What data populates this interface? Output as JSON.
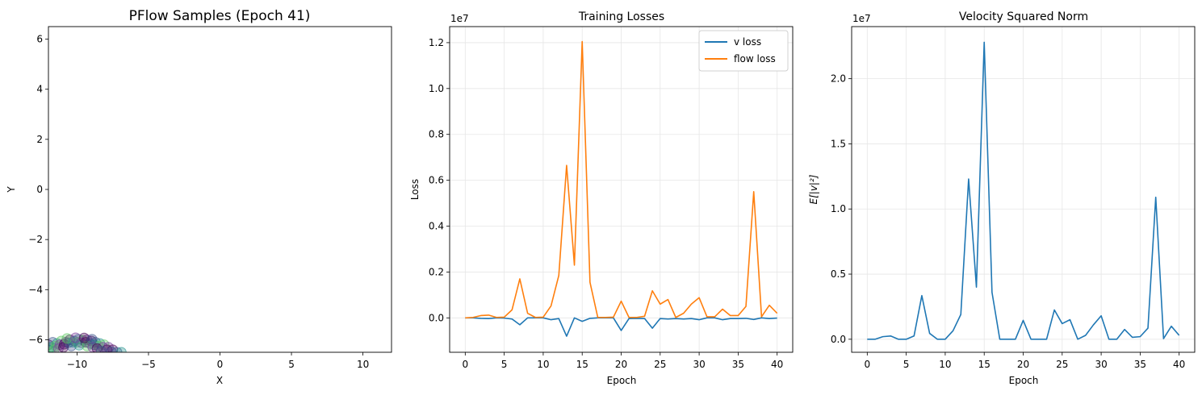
{
  "chart_data": [
    {
      "type": "scatter",
      "title": "PFlow Samples (Epoch 41)",
      "xlabel": "X",
      "ylabel": "Y",
      "xlim": [
        -12,
        12
      ],
      "ylim": [
        -6.5,
        6.5
      ],
      "xticks": [
        -10,
        -5,
        0,
        5,
        10
      ],
      "xtick_labels": [
        "−10",
        "−5",
        "0",
        "5",
        "10"
      ],
      "yticks": [
        -6,
        -4,
        -2,
        0,
        2,
        4,
        6
      ],
      "ytick_labels": [
        "−6",
        "−4",
        "−2",
        "0",
        "2",
        "4",
        "6"
      ],
      "grid": false,
      "colors": [
        "#440154",
        "#3b528b",
        "#21918c",
        "#5ec962",
        "#7b3f9e"
      ],
      "points": [
        [
          -12.0,
          -6.2
        ],
        [
          -11.7,
          -6.1
        ],
        [
          -11.4,
          -6.15
        ],
        [
          -11.1,
          -6.05
        ],
        [
          -10.8,
          -6.1
        ],
        [
          -10.5,
          -6.0
        ],
        [
          -10.2,
          -6.05
        ],
        [
          -9.9,
          -5.98
        ],
        [
          -9.6,
          -6.02
        ],
        [
          -9.3,
          -6.0
        ],
        [
          -9.0,
          -6.05
        ],
        [
          -8.7,
          -6.1
        ],
        [
          -8.4,
          -6.15
        ],
        [
          -8.1,
          -6.2
        ],
        [
          -7.8,
          -6.3
        ],
        [
          -7.5,
          -6.4
        ],
        [
          -7.2,
          -6.5
        ],
        [
          -11.8,
          -6.3
        ],
        [
          -11.5,
          -6.25
        ],
        [
          -11.2,
          -6.2
        ],
        [
          -10.9,
          -6.18
        ],
        [
          -10.6,
          -6.12
        ],
        [
          -10.3,
          -6.1
        ],
        [
          -10.0,
          -6.1
        ],
        [
          -9.7,
          -6.12
        ],
        [
          -9.4,
          -6.1
        ],
        [
          -9.1,
          -6.15
        ],
        [
          -8.8,
          -6.2
        ],
        [
          -8.5,
          -6.25
        ],
        [
          -8.2,
          -6.3
        ],
        [
          -7.9,
          -6.4
        ],
        [
          -7.6,
          -6.48
        ],
        [
          -12.0,
          -6.4
        ],
        [
          -11.6,
          -6.4
        ],
        [
          -11.3,
          -6.35
        ],
        [
          -10.95,
          -6.3
        ],
        [
          -10.4,
          -6.25
        ],
        [
          -9.85,
          -6.22
        ],
        [
          -9.3,
          -6.25
        ],
        [
          -8.9,
          -6.3
        ],
        [
          -8.6,
          -6.35
        ],
        [
          -8.3,
          -6.45
        ],
        [
          -6.9,
          -6.5
        ],
        [
          -10.7,
          -5.95
        ],
        [
          -10.1,
          -5.92
        ],
        [
          -9.5,
          -5.93
        ],
        [
          -8.95,
          -5.98
        ]
      ]
    },
    {
      "type": "line",
      "title": "Training Losses",
      "xlabel": "Epoch",
      "ylabel": "Loss",
      "offset_text": "1e7",
      "xlim": [
        -2,
        42
      ],
      "ylim": [
        -0.15,
        1.27
      ],
      "xticks": [
        0,
        5,
        10,
        15,
        20,
        25,
        30,
        35,
        40
      ],
      "yticks": [
        0.0,
        0.2,
        0.4,
        0.6,
        0.8,
        1.0,
        1.2
      ],
      "ytick_labels": [
        "0.0",
        "0.2",
        "0.4",
        "0.6",
        "0.8",
        "1.0",
        "1.2"
      ],
      "grid": true,
      "legend": "top-right",
      "x": [
        0,
        1,
        2,
        3,
        4,
        5,
        6,
        7,
        8,
        9,
        10,
        11,
        12,
        13,
        14,
        15,
        16,
        17,
        18,
        19,
        20,
        21,
        22,
        23,
        24,
        25,
        26,
        27,
        28,
        29,
        30,
        31,
        32,
        33,
        34,
        35,
        36,
        37,
        38,
        39,
        40
      ],
      "series": [
        {
          "name": "v loss",
          "color": "#1f77b4",
          "values": [
            0,
            0,
            -0.002,
            -0.003,
            0,
            -0.001,
            -0.005,
            -0.03,
            0,
            0,
            0,
            -0.008,
            -0.003,
            -0.08,
            0,
            -0.015,
            -0.002,
            0,
            0,
            0,
            -0.055,
            -0.003,
            -0.002,
            -0.003,
            -0.045,
            -0.003,
            -0.005,
            -0.003,
            -0.005,
            -0.003,
            -0.008,
            0,
            0,
            -0.008,
            -0.003,
            -0.003,
            -0.002,
            -0.007,
            0,
            -0.003,
            -0.001
          ]
        },
        {
          "name": "flow loss",
          "color": "#ff7f0e",
          "values": [
            0,
            0.002,
            0.01,
            0.012,
            0.002,
            0.003,
            0.035,
            0.17,
            0.02,
            0.002,
            0.003,
            0.052,
            0.185,
            0.665,
            0.23,
            1.205,
            0.155,
            0.002,
            0.002,
            0.003,
            0.073,
            0.002,
            0.002,
            0.007,
            0.118,
            0.06,
            0.08,
            0.002,
            0.02,
            0.06,
            0.088,
            0.005,
            0.005,
            0.038,
            0.01,
            0.01,
            0.05,
            0.55,
            0.005,
            0.055,
            0.02
          ]
        }
      ]
    },
    {
      "type": "line",
      "title": "Velocity Squared Norm",
      "xlabel": "Epoch",
      "ylabel": "E[|v|²]",
      "offset_text": "1e7",
      "xlim": [
        -2,
        42
      ],
      "ylim": [
        -0.1,
        2.4
      ],
      "xticks": [
        0,
        5,
        10,
        15,
        20,
        25,
        30,
        35,
        40
      ],
      "yticks": [
        0.0,
        0.5,
        1.0,
        1.5,
        2.0
      ],
      "ytick_labels": [
        "0.0",
        "0.5",
        "1.0",
        "1.5",
        "2.0"
      ],
      "grid": true,
      "x": [
        0,
        1,
        2,
        3,
        4,
        5,
        6,
        7,
        8,
        9,
        10,
        11,
        12,
        13,
        14,
        15,
        16,
        17,
        18,
        19,
        20,
        21,
        22,
        23,
        24,
        25,
        26,
        27,
        28,
        29,
        30,
        31,
        32,
        33,
        34,
        35,
        36,
        37,
        38,
        39,
        40
      ],
      "series": [
        {
          "color": "#1f77b4",
          "values": [
            0,
            0,
            0.02,
            0.025,
            0,
            0,
            0.025,
            0.335,
            0.045,
            0,
            0,
            0.065,
            0.19,
            1.23,
            0.4,
            2.28,
            0.36,
            0,
            0,
            0,
            0.145,
            0,
            0,
            0,
            0.225,
            0.12,
            0.15,
            0,
            0.03,
            0.11,
            0.18,
            0,
            0,
            0.075,
            0.015,
            0.02,
            0.085,
            1.09,
            0.005,
            0.1,
            0.03
          ]
        }
      ]
    }
  ]
}
